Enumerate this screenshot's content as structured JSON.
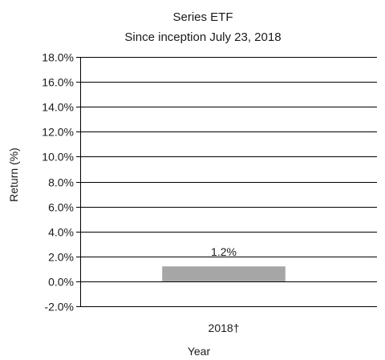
{
  "chart_data": {
    "type": "bar",
    "title": "Series ETF",
    "subtitle": "Since inception July 23, 2018",
    "categories": [
      "2018†"
    ],
    "values": [
      1.2
    ],
    "data_labels": [
      "1.2%"
    ],
    "xlabel": "Year",
    "ylabel": "Return (%)",
    "ylim": [
      -2.0,
      18.0
    ],
    "yticks": [
      18.0,
      16.0,
      14.0,
      12.0,
      10.0,
      8.0,
      6.0,
      4.0,
      2.0,
      0.0,
      -2.0
    ],
    "ytick_labels": [
      "18.0%",
      "16.0%",
      "14.0%",
      "12.0%",
      "10.0%",
      "8.0%",
      "6.0%",
      "4.0%",
      "2.0%",
      "0.0%",
      "-2.0%"
    ],
    "grid": true,
    "bar_color": "#a6a6a6",
    "grid_color": "#000000"
  }
}
